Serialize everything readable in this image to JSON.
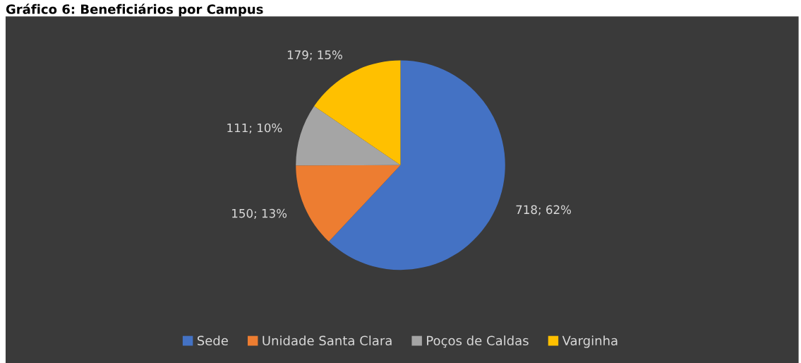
{
  "chart_data": {
    "type": "pie",
    "title": "Gráfico 6: Beneficiários por Campus",
    "categories": [
      "Sede",
      "Unidade Santa Clara",
      "Poços de Caldas",
      "Varginha"
    ],
    "values": [
      718,
      150,
      111,
      179
    ],
    "value_labels": [
      "718; 62%",
      "150; 13%",
      "111; 10%",
      "179; 15%"
    ],
    "colors": [
      "#4472c4",
      "#ed7d31",
      "#a5a5a5",
      "#ffc000"
    ],
    "legend": "bottom"
  }
}
